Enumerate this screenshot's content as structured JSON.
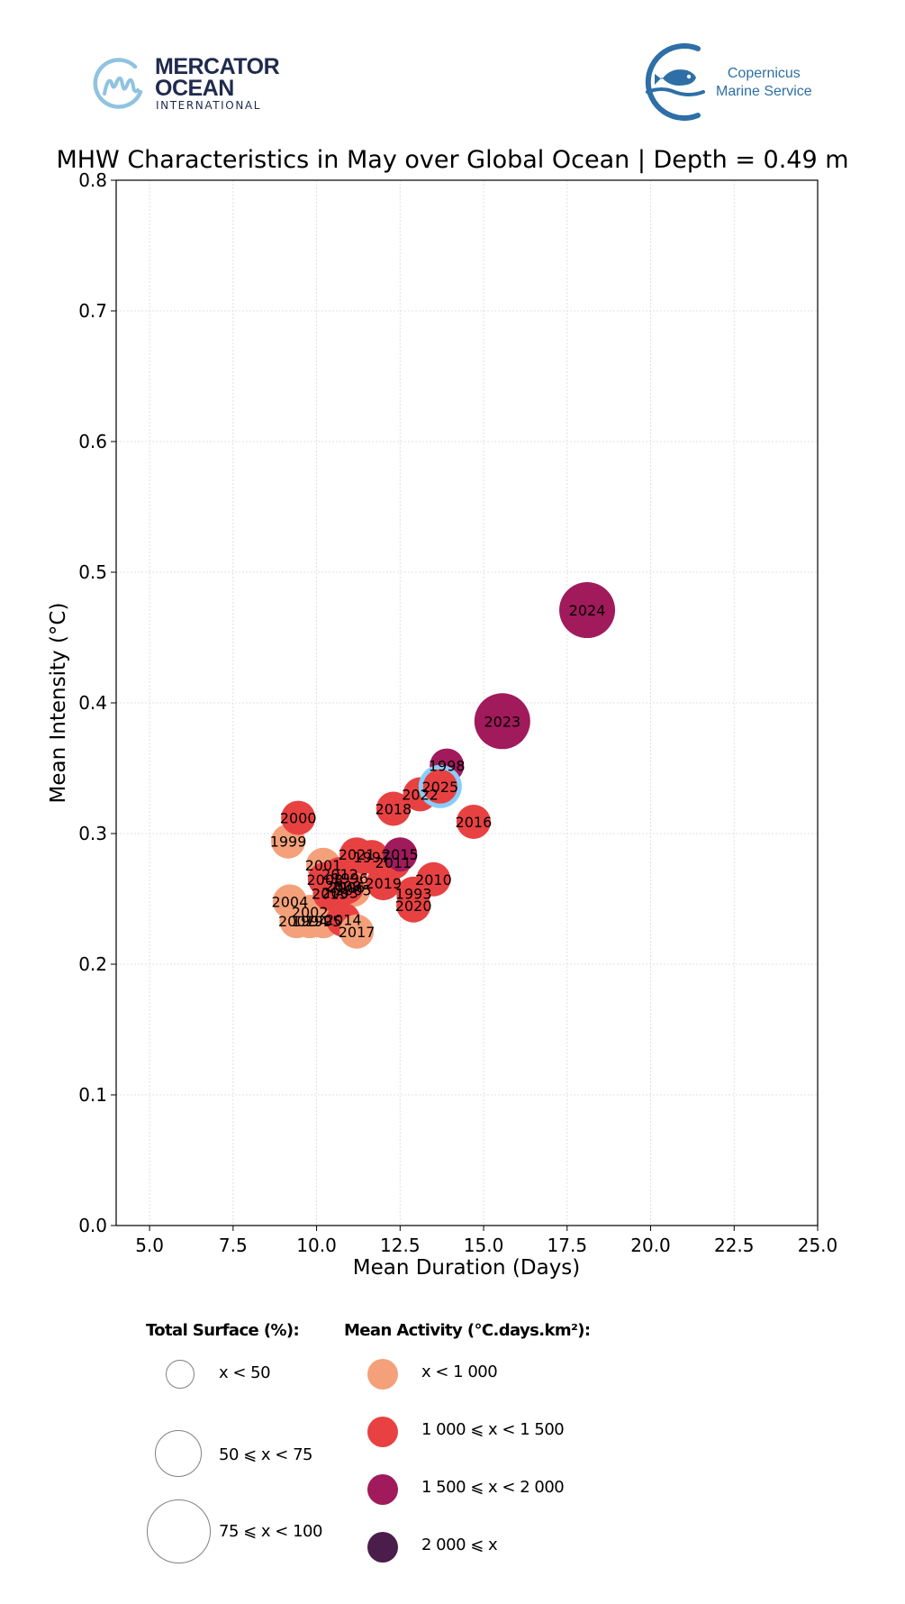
{
  "logos": {
    "left": {
      "line1": "MERCATOR",
      "line2": "OCEAN",
      "line3": "INTERNATIONAL",
      "icon": "mercator-m-icon",
      "color": "#1f2a4d",
      "accent": "#8fc3e0"
    },
    "right": {
      "line1": "Copernicus",
      "line2": "Marine Service",
      "icon": "copernicus-fish-icon",
      "color": "#2d6fa6"
    }
  },
  "chart_data": {
    "type": "scatter",
    "title": "MHW Characteristics in May over Global Ocean | Depth = 0.49 m",
    "xlabel": "Mean Duration (Days)",
    "ylabel": "Mean Intensity (°C)",
    "xlim": [
      4.0,
      25.0
    ],
    "ylim": [
      0.0,
      0.8
    ],
    "xticks": [
      "5.0",
      "7.5",
      "10.0",
      "12.5",
      "15.0",
      "17.5",
      "20.0",
      "22.5",
      "25.0"
    ],
    "xtick_values": [
      5.0,
      7.5,
      10.0,
      12.5,
      15.0,
      17.5,
      20.0,
      22.5,
      25.0
    ],
    "yticks": [
      "0.0",
      "0.1",
      "0.2",
      "0.3",
      "0.4",
      "0.5",
      "0.6",
      "0.7",
      "0.8"
    ],
    "ytick_values": [
      0.0,
      0.1,
      0.2,
      0.3,
      0.4,
      0.5,
      0.6,
      0.7,
      0.8
    ],
    "grid": true,
    "highlight_year": "2025",
    "highlight_color": "#87cefa",
    "activity_colors": {
      "lt1000": "#f4a07a",
      "1000-1500": "#e84142",
      "1500-2000": "#a11a5b",
      "ge2000": "#4b1d4b"
    },
    "points": [
      {
        "year": "1993",
        "x": 12.9,
        "y": 0.254,
        "surface": "lt50",
        "activity": "1000-1500"
      },
      {
        "year": "1994",
        "x": 9.8,
        "y": 0.233,
        "surface": "lt50",
        "activity": "lt1000"
      },
      {
        "year": "1995",
        "x": 10.2,
        "y": 0.233,
        "surface": "lt50",
        "activity": "lt1000"
      },
      {
        "year": "1996",
        "x": 11.0,
        "y": 0.266,
        "surface": "lt50",
        "activity": "1000-1500"
      },
      {
        "year": "1997",
        "x": 11.65,
        "y": 0.282,
        "surface": "lt50",
        "activity": "1000-1500"
      },
      {
        "year": "1998",
        "x": 13.9,
        "y": 0.352,
        "surface": "lt50",
        "activity": "1500-2000"
      },
      {
        "year": "1999",
        "x": 9.15,
        "y": 0.294,
        "surface": "lt50",
        "activity": "lt1000"
      },
      {
        "year": "2000",
        "x": 9.45,
        "y": 0.312,
        "surface": "lt50",
        "activity": "1000-1500"
      },
      {
        "year": "2001",
        "x": 10.2,
        "y": 0.276,
        "surface": "lt50",
        "activity": "lt1000"
      },
      {
        "year": "2002",
        "x": 9.8,
        "y": 0.24,
        "surface": "lt50",
        "activity": "lt1000"
      },
      {
        "year": "2003",
        "x": 10.7,
        "y": 0.255,
        "surface": "lt50",
        "activity": "1000-1500"
      },
      {
        "year": "2004",
        "x": 9.2,
        "y": 0.248,
        "surface": "lt50",
        "activity": "lt1000"
      },
      {
        "year": "2005",
        "x": 11.1,
        "y": 0.257,
        "surface": "lt50",
        "activity": "lt1000"
      },
      {
        "year": "2006",
        "x": 10.9,
        "y": 0.259,
        "surface": "lt50",
        "activity": "1000-1500"
      },
      {
        "year": "2007",
        "x": 9.4,
        "y": 0.233,
        "surface": "lt50",
        "activity": "lt1000"
      },
      {
        "year": "2008",
        "x": 10.25,
        "y": 0.265,
        "surface": "lt50",
        "activity": "1000-1500"
      },
      {
        "year": "2009",
        "x": 10.8,
        "y": 0.26,
        "surface": "lt50",
        "activity": "1000-1500"
      },
      {
        "year": "2010",
        "x": 13.5,
        "y": 0.265,
        "surface": "lt50",
        "activity": "1000-1500"
      },
      {
        "year": "2011",
        "x": 12.3,
        "y": 0.278,
        "surface": "lt50",
        "activity": "1000-1500"
      },
      {
        "year": "2012",
        "x": 10.7,
        "y": 0.269,
        "surface": "lt50",
        "activity": "1000-1500"
      },
      {
        "year": "2013",
        "x": 10.4,
        "y": 0.254,
        "surface": "lt50",
        "activity": "1000-1500"
      },
      {
        "year": "2014",
        "x": 10.8,
        "y": 0.234,
        "surface": "lt50",
        "activity": "1000-1500"
      },
      {
        "year": "2015",
        "x": 12.5,
        "y": 0.284,
        "surface": "lt50",
        "activity": "1500-2000"
      },
      {
        "year": "2016",
        "x": 14.7,
        "y": 0.309,
        "surface": "lt50",
        "activity": "1000-1500"
      },
      {
        "year": "2017",
        "x": 11.2,
        "y": 0.225,
        "surface": "lt50",
        "activity": "lt1000"
      },
      {
        "year": "2018",
        "x": 12.3,
        "y": 0.319,
        "surface": "lt50",
        "activity": "1000-1500"
      },
      {
        "year": "2019",
        "x": 12.0,
        "y": 0.262,
        "surface": "lt50",
        "activity": "1000-1500"
      },
      {
        "year": "2020",
        "x": 12.9,
        "y": 0.245,
        "surface": "lt50",
        "activity": "1000-1500"
      },
      {
        "year": "2021",
        "x": 11.2,
        "y": 0.284,
        "surface": "lt50",
        "activity": "1000-1500"
      },
      {
        "year": "2022",
        "x": 13.1,
        "y": 0.33,
        "surface": "lt50",
        "activity": "1000-1500"
      },
      {
        "year": "2023",
        "x": 15.56,
        "y": 0.386,
        "surface": "50-75",
        "activity": "1500-2000"
      },
      {
        "year": "2024",
        "x": 18.1,
        "y": 0.471,
        "surface": "50-75",
        "activity": "1500-2000"
      },
      {
        "year": "2025",
        "x": 13.7,
        "y": 0.336,
        "surface": "lt50",
        "activity": "1000-1500"
      }
    ],
    "legend": {
      "surface_title": "Total Surface (%):",
      "surface_items": [
        {
          "key": "lt50",
          "label": "x < 50"
        },
        {
          "key": "50-75",
          "label": "50 ⩽ x < 75"
        },
        {
          "key": "75-100",
          "label": "75 ⩽ x < 100"
        }
      ],
      "activity_title": "Mean Activity (°C.days.km²):",
      "activity_items": [
        {
          "key": "lt1000",
          "label": "x < 1 000",
          "color": "#f4a07a"
        },
        {
          "key": "1000-1500",
          "label": "1 000 ⩽ x < 1 500",
          "color": "#e84142"
        },
        {
          "key": "1500-2000",
          "label": "1 500 ⩽ x < 2 000",
          "color": "#a11a5b"
        },
        {
          "key": "ge2000",
          "label": "2 000 ⩽ x",
          "color": "#4b1d4b"
        }
      ],
      "placement": "bottom"
    }
  }
}
